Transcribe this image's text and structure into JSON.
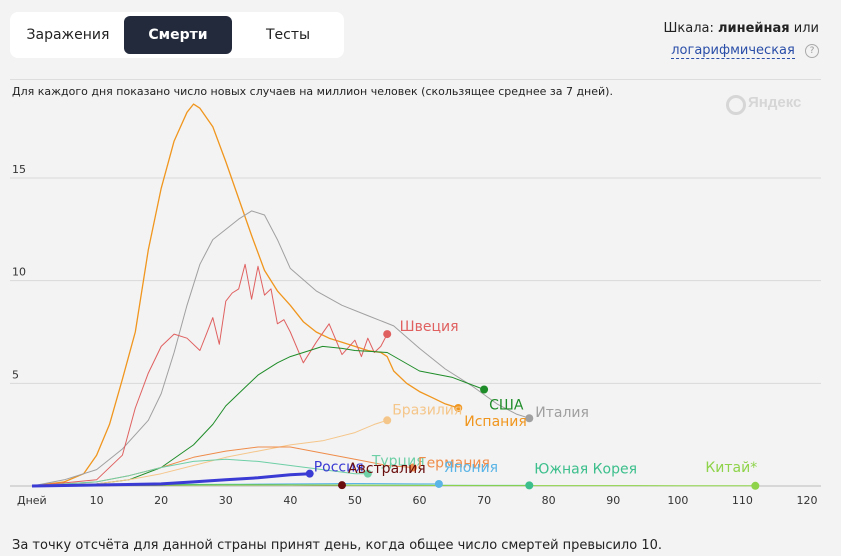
{
  "tabs": [
    {
      "label": "Заражения",
      "active": false
    },
    {
      "label": "Смерти",
      "active": true
    },
    {
      "label": "Тесты",
      "active": false
    }
  ],
  "scale": {
    "prefix": "Шкала:",
    "linear": "линейная",
    "or": "или",
    "log": "логарифмическая",
    "help": "?"
  },
  "description": "Для каждого дня показано число новых случаев на миллион человек (скользящее среднее за 7 дней).",
  "logo": "Яндекс",
  "footnote": "За точку отсчёта для данной страны принят день, когда общее число смертей превысило 10.",
  "chart_data": {
    "type": "line",
    "xlabel": "Дней",
    "ylabel": "",
    "xlim": [
      0,
      120
    ],
    "ylim": [
      0,
      18.8
    ],
    "xticks": [
      10,
      20,
      30,
      40,
      50,
      60,
      70,
      80,
      90,
      100,
      110,
      120
    ],
    "yticks": [
      5,
      10,
      15
    ],
    "series": [
      {
        "name": "Испания",
        "color": "#f0961e",
        "width": 1.3,
        "x": [
          0,
          5,
          8,
          10,
          12,
          14,
          16,
          18,
          20,
          22,
          24,
          25,
          26,
          28,
          30,
          32,
          34,
          36,
          38,
          40,
          42,
          44,
          46,
          48,
          50,
          52,
          54,
          55,
          56,
          58,
          60,
          62,
          64,
          66
        ],
        "y": [
          0,
          0.2,
          0.6,
          1.5,
          3.0,
          5.2,
          7.5,
          11.5,
          14.5,
          16.8,
          18.2,
          18.6,
          18.4,
          17.5,
          15.8,
          14.0,
          12.2,
          10.5,
          9.5,
          8.8,
          8.0,
          7.5,
          7.2,
          7.0,
          6.8,
          6.6,
          6.5,
          6.3,
          5.6,
          5.0,
          4.6,
          4.3,
          4.0,
          3.8
        ]
      },
      {
        "name": "Италия",
        "color": "#a0a0a0",
        "width": 1.0,
        "x": [
          0,
          5,
          10,
          14,
          18,
          20,
          22,
          24,
          26,
          28,
          30,
          32,
          34,
          36,
          38,
          40,
          44,
          48,
          52,
          56,
          60,
          64,
          68,
          72,
          75,
          77
        ],
        "y": [
          0,
          0.3,
          0.8,
          1.8,
          3.2,
          4.5,
          6.5,
          8.8,
          10.8,
          12.0,
          12.5,
          13.0,
          13.4,
          13.2,
          12.0,
          10.6,
          9.5,
          8.8,
          8.3,
          7.8,
          6.7,
          5.7,
          4.9,
          4.0,
          3.5,
          3.3
        ]
      },
      {
        "name": "Швеция",
        "color": "#e06060",
        "width": 1.0,
        "x": [
          0,
          10,
          14,
          16,
          18,
          20,
          22,
          24,
          26,
          27,
          28,
          29,
          30,
          31,
          32,
          33,
          34,
          35,
          36,
          37,
          38,
          39,
          40,
          42,
          44,
          46,
          48,
          50,
          51,
          52,
          53,
          54,
          55
        ],
        "y": [
          0,
          0.3,
          1.5,
          3.8,
          5.5,
          6.8,
          7.4,
          7.2,
          6.6,
          7.4,
          8.2,
          6.9,
          9.0,
          9.4,
          9.6,
          10.8,
          9.1,
          10.7,
          9.3,
          9.6,
          7.9,
          8.1,
          7.5,
          6.0,
          7.0,
          7.9,
          6.4,
          7.1,
          6.3,
          7.2,
          6.5,
          6.8,
          7.4
        ]
      },
      {
        "name": "США",
        "color": "#1e8c28",
        "width": 1.0,
        "x": [
          0,
          10,
          15,
          20,
          25,
          28,
          30,
          33,
          35,
          38,
          40,
          43,
          45,
          48,
          50,
          55,
          60,
          65,
          70
        ],
        "y": [
          0,
          0.1,
          0.3,
          0.9,
          2.0,
          3.0,
          3.9,
          4.8,
          5.4,
          6.0,
          6.3,
          6.6,
          6.8,
          6.7,
          6.6,
          6.5,
          5.6,
          5.3,
          4.7
        ]
      },
      {
        "name": "Бразилия",
        "color": "#f5c68a",
        "width": 1.0,
        "x": [
          0,
          10,
          15,
          20,
          25,
          30,
          35,
          40,
          45,
          50,
          53,
          55
        ],
        "y": [
          0,
          0.1,
          0.3,
          0.6,
          1.0,
          1.4,
          1.7,
          2.0,
          2.2,
          2.6,
          3.0,
          3.2
        ]
      },
      {
        "name": "Германия",
        "color": "#ef8c4a",
        "width": 1.0,
        "x": [
          0,
          10,
          15,
          20,
          25,
          30,
          35,
          40,
          45,
          50,
          55,
          59
        ],
        "y": [
          0,
          0.2,
          0.5,
          0.9,
          1.4,
          1.7,
          1.9,
          1.9,
          1.6,
          1.3,
          1.0,
          0.9
        ]
      },
      {
        "name": "Турция",
        "color": "#6ecfa6",
        "width": 1.0,
        "x": [
          0,
          10,
          15,
          20,
          25,
          30,
          35,
          40,
          45,
          50,
          52
        ],
        "y": [
          0,
          0.2,
          0.5,
          0.9,
          1.2,
          1.3,
          1.2,
          1.0,
          0.8,
          0.6,
          0.6
        ]
      },
      {
        "name": "Япония",
        "color": "#5ab4e6",
        "width": 1.0,
        "x": [
          0,
          10,
          20,
          30,
          40,
          50,
          60,
          63
        ],
        "y": [
          0,
          0.03,
          0.05,
          0.08,
          0.1,
          0.12,
          0.1,
          0.1
        ]
      },
      {
        "name": "Австралия",
        "color": "#6a0d0d",
        "width": 1.0,
        "x": [
          0,
          10,
          20,
          30,
          40,
          48
        ],
        "y": [
          0,
          0.02,
          0.04,
          0.06,
          0.05,
          0.04
        ]
      },
      {
        "name": "Южная Корея",
        "color": "#3cbf8c",
        "width": 1.0,
        "x": [
          0,
          10,
          20,
          30,
          40,
          50,
          60,
          70,
          77
        ],
        "y": [
          0,
          0.05,
          0.08,
          0.08,
          0.06,
          0.05,
          0.04,
          0.03,
          0.03
        ]
      },
      {
        "name": "Китай*",
        "color": "#8ed34a",
        "width": 1.0,
        "x": [
          0,
          10,
          20,
          30,
          40,
          50,
          60,
          70,
          80,
          90,
          100,
          112
        ],
        "y": [
          0,
          0.02,
          0.04,
          0.05,
          0.05,
          0.04,
          0.03,
          0.02,
          0.02,
          0.02,
          0.01,
          0.01
        ]
      },
      {
        "name": "Россия",
        "color": "#3a3ad4",
        "width": 3.0,
        "x": [
          0,
          10,
          20,
          25,
          30,
          35,
          40,
          43
        ],
        "y": [
          0,
          0.05,
          0.1,
          0.2,
          0.3,
          0.4,
          0.55,
          0.6
        ]
      }
    ],
    "labels": [
      {
        "text": "Швеция",
        "series": "Швеция",
        "x": 56,
        "y": 7.4,
        "dx": 6,
        "dy": -3
      },
      {
        "text": "Бразилия",
        "series": "Бразилия",
        "x": 55,
        "y": 3.2,
        "dx": 5,
        "dy": -6
      },
      {
        "text": "США",
        "series": "США",
        "x": 70,
        "y": 4.7,
        "dx": 5,
        "dy": 20
      },
      {
        "text": "Италия",
        "series": "Италия",
        "x": 77,
        "y": 3.3,
        "dx": 6,
        "dy": -1
      },
      {
        "text": "Испания",
        "series": "Испания",
        "x": 66,
        "y": 3.8,
        "dx": 6,
        "dy": 18
      },
      {
        "text": "Турция",
        "series": "Турция",
        "x": 52,
        "y": 0.6,
        "dx": 4,
        "dy": -8
      },
      {
        "text": "Россия",
        "series": "Россия",
        "x": 43,
        "y": 0.6,
        "dx": 4,
        "dy": -2
      },
      {
        "text": "Австралия",
        "series": "Австралия",
        "x": 48,
        "y": 0.04,
        "dx": 6,
        "dy": -12
      },
      {
        "text": "Германия",
        "series": "Германия",
        "x": 59,
        "y": 0.9,
        "dx": 5,
        "dy": 0
      },
      {
        "text": "Япония",
        "series": "Япония",
        "x": 63,
        "y": 0.1,
        "dx": 5,
        "dy": -12
      },
      {
        "text": "Южная Корея",
        "series": "Южная Корея",
        "x": 77,
        "y": 0.03,
        "dx": 5,
        "dy": -12
      },
      {
        "text": "Китай*",
        "series": "Китай*",
        "x": 112,
        "y": 0.01,
        "dx": -50,
        "dy": -14
      }
    ],
    "grid": true
  }
}
